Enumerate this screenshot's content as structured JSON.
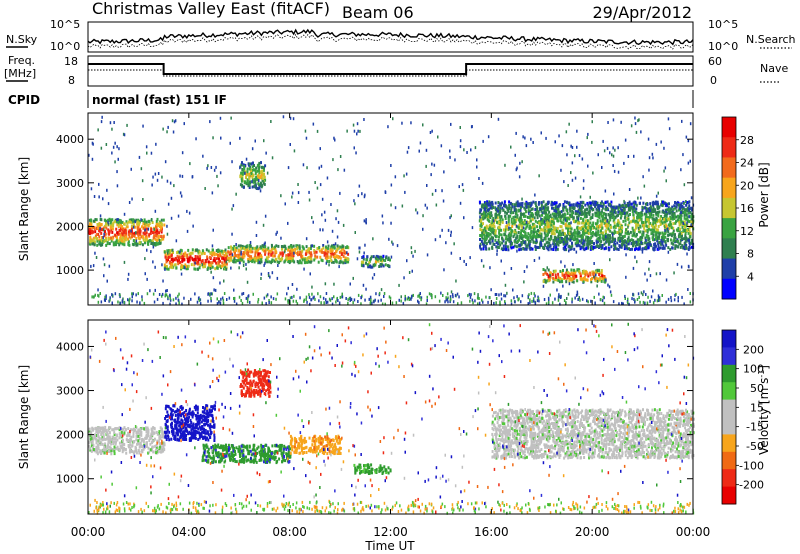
{
  "header": {
    "title": "Christmas Valley East (fitACF)",
    "beam": "Beam 06",
    "date": "29/Apr/2012"
  },
  "noise_panel": {
    "left_label": "N.Sky",
    "right_label": "N.Search",
    "left_ticks": [
      "10^5",
      "10^0"
    ],
    "right_ticks": [
      "10^5",
      "10^0"
    ]
  },
  "freq_panel": {
    "left_label_1": "Freq.",
    "left_label_2": "[MHz]",
    "right_label": "Nave",
    "left_ticks": [
      "18",
      "8"
    ],
    "right_ticks": [
      "60",
      "0"
    ]
  },
  "cpid_panel": {
    "label": "CPID",
    "text": "normal (fast) 151 IF"
  },
  "colors": {
    "power_scale": [
      "#0000ff",
      "#1f3fa8",
      "#2f7f4f",
      "#39a341",
      "#c6c630",
      "#f7a51c",
      "#f26a1c",
      "#ee2a16",
      "#e80000"
    ],
    "velocity_scale": [
      "#1414c8",
      "#2f2fd8",
      "#2e9b2e",
      "#51c83a",
      "#c0c0c0",
      "#c0c0c0",
      "#f7a51c",
      "#f06a14",
      "#ee2a16",
      "#e80000"
    ]
  },
  "chart_data": [
    {
      "type": "heatmap",
      "title": "Power",
      "ylabel": "Slant Range [km]",
      "yticks": [
        "1000",
        "2000",
        "3000",
        "4000"
      ],
      "ylim": [
        200,
        4600
      ],
      "xlim": [
        0,
        24
      ],
      "colorbar_label": "Power [dB]",
      "colorbar_ticks": [
        "4",
        "8",
        "12",
        "16",
        "20",
        "24",
        "28"
      ],
      "colorbar_range": [
        0,
        32
      ],
      "features": [
        {
          "t0": 0.0,
          "t1": 3.0,
          "r0": 1600,
          "r1": 2200,
          "value": 26
        },
        {
          "t0": 3.0,
          "t1": 5.5,
          "r0": 1050,
          "r1": 1500,
          "value": 28
        },
        {
          "t0": 5.5,
          "t1": 10.3,
          "r0": 1200,
          "r1": 1600,
          "value": 24
        },
        {
          "t0": 10.8,
          "t1": 12.0,
          "r0": 1100,
          "r1": 1350,
          "value": 14
        },
        {
          "t0": 6.0,
          "t1": 7.0,
          "r0": 2900,
          "r1": 3500,
          "value": 16
        },
        {
          "t0": 15.5,
          "t1": 24.0,
          "r0": 1500,
          "r1": 2600,
          "value": 14
        },
        {
          "t0": 18.0,
          "t1": 20.5,
          "r0": 750,
          "r1": 1050,
          "value": 26
        }
      ]
    },
    {
      "type": "heatmap",
      "title": "Velocity",
      "ylabel": "Slant Range [km]",
      "yticks": [
        "1000",
        "2000",
        "3000",
        "4000"
      ],
      "ylim": [
        200,
        4600
      ],
      "xlim": [
        0,
        24
      ],
      "xticks": [
        "00:00",
        "04:00",
        "08:00",
        "12:00",
        "16:00",
        "20:00",
        "00:00"
      ],
      "xlabel": "Time UT",
      "colorbar_label": "Velocity [m s^-1]",
      "colorbar_ticks": [
        "200",
        "100",
        "50",
        "15",
        "-15",
        "-50",
        "-100",
        "-200"
      ],
      "features": [
        {
          "t0": 0.0,
          "t1": 3.0,
          "r0": 1600,
          "r1": 2200,
          "value": 0
        },
        {
          "t0": 3.0,
          "t1": 5.0,
          "r0": 1900,
          "r1": 2700,
          "value": 180
        },
        {
          "t0": 4.5,
          "t1": 8.0,
          "r0": 1400,
          "r1": 1800,
          "value": 60
        },
        {
          "t0": 8.0,
          "t1": 10.0,
          "r0": 1600,
          "r1": 2000,
          "value": -60
        },
        {
          "t0": 6.0,
          "t1": 7.2,
          "r0": 2900,
          "r1": 3500,
          "value": -220
        },
        {
          "t0": 10.5,
          "t1": 12.0,
          "r0": 1150,
          "r1": 1350,
          "value": 40
        },
        {
          "t0": 16.0,
          "t1": 24.0,
          "r0": 1500,
          "r1": 2600,
          "value": 0
        }
      ]
    }
  ]
}
